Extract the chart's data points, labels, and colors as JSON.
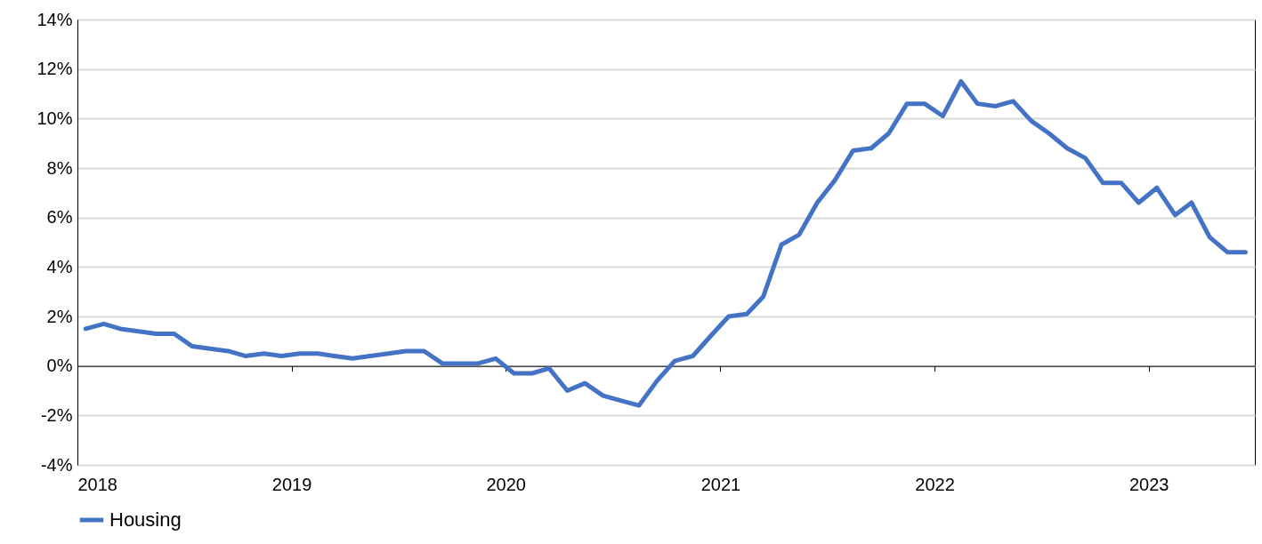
{
  "chart_data": {
    "type": "line",
    "x": [
      "2018-01-15",
      "2018-02-15",
      "2018-03-15",
      "2018-04-15",
      "2018-05-15",
      "2018-06-15",
      "2018-07-15",
      "2018-08-15",
      "2018-09-15",
      "2018-10-15",
      "2018-11-15",
      "2018-12-15",
      "2019-01-15",
      "2019-02-15",
      "2019-03-15",
      "2019-04-15",
      "2019-05-15",
      "2019-06-15",
      "2019-07-15",
      "2019-08-15",
      "2019-09-15",
      "2019-10-15",
      "2019-11-15",
      "2019-12-15",
      "2020-01-15",
      "2020-02-15",
      "2020-03-15",
      "2020-04-15",
      "2020-05-15",
      "2020-06-15",
      "2020-07-15",
      "2020-08-15",
      "2020-09-15",
      "2020-10-15",
      "2020-11-15",
      "2020-12-15",
      "2021-01-15",
      "2021-02-15",
      "2021-03-15",
      "2021-04-15",
      "2021-05-15",
      "2021-06-15",
      "2021-07-15",
      "2021-08-15",
      "2021-09-15",
      "2021-10-15",
      "2021-11-15",
      "2021-12-15",
      "2022-01-15",
      "2022-02-15",
      "2022-03-15",
      "2022-04-15",
      "2022-05-15",
      "2022-06-15",
      "2022-07-15",
      "2022-08-15",
      "2022-09-15",
      "2022-10-15",
      "2022-11-15",
      "2022-12-15",
      "2023-01-15",
      "2023-02-15",
      "2023-03-15",
      "2023-04-15",
      "2023-05-15",
      "2023-06-15"
    ],
    "series": [
      {
        "name": "Housing",
        "color": "#4472c4",
        "values": [
          1.5,
          1.7,
          1.5,
          1.4,
          1.3,
          1.3,
          0.8,
          0.7,
          0.6,
          0.4,
          0.5,
          0.4,
          0.5,
          0.5,
          0.4,
          0.3,
          0.4,
          0.5,
          0.6,
          0.6,
          0.1,
          0.1,
          0.1,
          0.3,
          -0.3,
          -0.3,
          -0.1,
          -1.0,
          -0.7,
          -1.2,
          -1.4,
          -1.6,
          -0.6,
          0.2,
          0.4,
          1.2,
          2.0,
          2.1,
          2.8,
          4.9,
          5.3,
          6.6,
          7.5,
          8.7,
          8.8,
          9.4,
          10.6,
          10.6,
          10.1,
          11.5,
          10.6,
          10.5,
          10.7,
          9.9,
          9.4,
          8.8,
          8.4,
          7.4,
          7.4,
          6.6,
          7.2,
          6.1,
          6.6,
          5.2,
          4.6,
          4.6
        ]
      }
    ],
    "xlim": [
      "2018-01-01",
      "2023-07-01"
    ],
    "xticks": [
      {
        "value": "2018-01-01",
        "label": "2018"
      },
      {
        "value": "2019-01-01",
        "label": "2019"
      },
      {
        "value": "2020-01-01",
        "label": "2020"
      },
      {
        "value": "2021-01-01",
        "label": "2021"
      },
      {
        "value": "2022-01-01",
        "label": "2022"
      },
      {
        "value": "2023-01-01",
        "label": "2023"
      }
    ],
    "ylim": [
      -4,
      14
    ],
    "yticks": [
      {
        "value": -4,
        "label": "-4%"
      },
      {
        "value": -2,
        "label": "-2%"
      },
      {
        "value": 0,
        "label": "0%"
      },
      {
        "value": 2,
        "label": "2%"
      },
      {
        "value": 4,
        "label": "4%"
      },
      {
        "value": 6,
        "label": "6%"
      },
      {
        "value": 8,
        "label": "8%"
      },
      {
        "value": 10,
        "label": "10%"
      },
      {
        "value": 12,
        "label": "12%"
      },
      {
        "value": 14,
        "label": "14%"
      }
    ],
    "grid": "y",
    "legend": "bottom",
    "line_style": "solid",
    "marker": "none"
  }
}
